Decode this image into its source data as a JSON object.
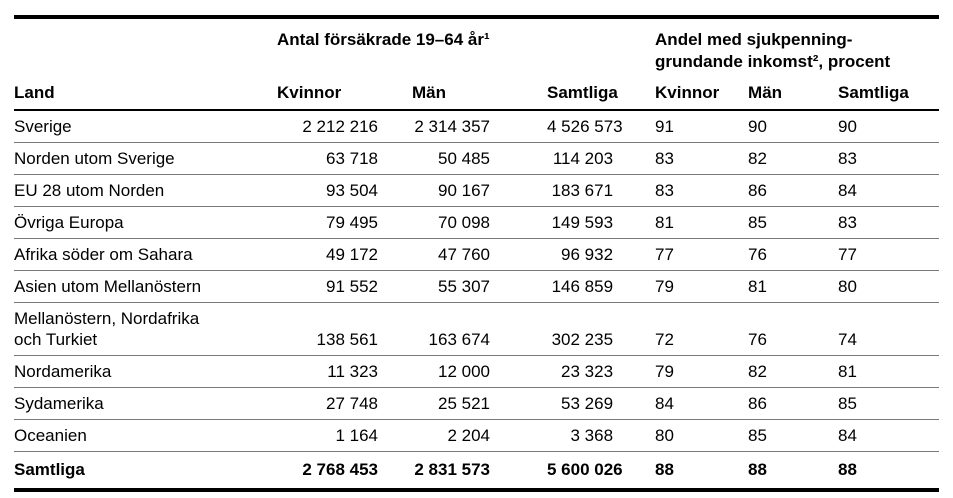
{
  "table": {
    "group_headers": {
      "antal": "Antal försäkrade 19–64 år¹",
      "andel_line1": "Andel med sjukpenning-",
      "andel_line2": "grundande inkomst², procent"
    },
    "column_headers": {
      "land": "Land",
      "antal_kvinnor": "Kvinnor",
      "antal_man": "Män",
      "antal_samtliga": "Samtliga",
      "andel_kvinnor": "Kvinnor",
      "andel_man": "Män",
      "andel_samtliga": "Samtliga"
    },
    "rows": [
      {
        "land": "Sverige",
        "antal_kvinnor": "2 212 216",
        "antal_man": "2 314 357",
        "antal_samtliga": "4 526 573",
        "andel_kvinnor": "91",
        "andel_man": "90",
        "andel_samtliga": "90"
      },
      {
        "land": "Norden utom Sverige",
        "antal_kvinnor": "63 718",
        "antal_man": "50 485",
        "antal_samtliga": "114 203",
        "andel_kvinnor": "83",
        "andel_man": "82",
        "andel_samtliga": "83"
      },
      {
        "land": "EU 28 utom Norden",
        "antal_kvinnor": "93 504",
        "antal_man": "90 167",
        "antal_samtliga": "183 671",
        "andel_kvinnor": "83",
        "andel_man": "86",
        "andel_samtliga": "84"
      },
      {
        "land": "Övriga Europa",
        "antal_kvinnor": "79 495",
        "antal_man": "70 098",
        "antal_samtliga": "149 593",
        "andel_kvinnor": "81",
        "andel_man": "85",
        "andel_samtliga": "83"
      },
      {
        "land": "Afrika söder om Sahara",
        "antal_kvinnor": "49 172",
        "antal_man": "47 760",
        "antal_samtliga": "96 932",
        "andel_kvinnor": "77",
        "andel_man": "76",
        "andel_samtliga": "77"
      },
      {
        "land": "Asien utom Mellanöstern",
        "antal_kvinnor": "91 552",
        "antal_man": "55 307",
        "antal_samtliga": "146 859",
        "andel_kvinnor": "79",
        "andel_man": "81",
        "andel_samtliga": "80"
      },
      {
        "land": "Mellanöstern, Nordafrika",
        "land_line2": "och Turkiet",
        "antal_kvinnor": "138 561",
        "antal_man": "163 674",
        "antal_samtliga": "302 235",
        "andel_kvinnor": "72",
        "andel_man": "76",
        "andel_samtliga": "74"
      },
      {
        "land": "Nordamerika",
        "antal_kvinnor": "11 323",
        "antal_man": "12 000",
        "antal_samtliga": "23 323",
        "andel_kvinnor": "79",
        "andel_man": "82",
        "andel_samtliga": "81"
      },
      {
        "land": "Sydamerika",
        "antal_kvinnor": "27 748",
        "antal_man": "25 521",
        "antal_samtliga": "53 269",
        "andel_kvinnor": "84",
        "andel_man": "86",
        "andel_samtliga": "85"
      },
      {
        "land": "Oceanien",
        "antal_kvinnor": "1 164",
        "antal_man": "2 204",
        "antal_samtliga": "3 368",
        "andel_kvinnor": "80",
        "andel_man": "85",
        "andel_samtliga": "84"
      }
    ],
    "total_row": {
      "land": "Samtliga",
      "antal_kvinnor": "2 768 453",
      "antal_man": "2 831 573",
      "antal_samtliga": "5 600 026",
      "andel_kvinnor": "88",
      "andel_man": "88",
      "andel_samtliga": "88"
    },
    "colors": {
      "text": "#000000",
      "border": "#000000",
      "row_divider": "#7a7a7a",
      "background": "#ffffff"
    }
  }
}
